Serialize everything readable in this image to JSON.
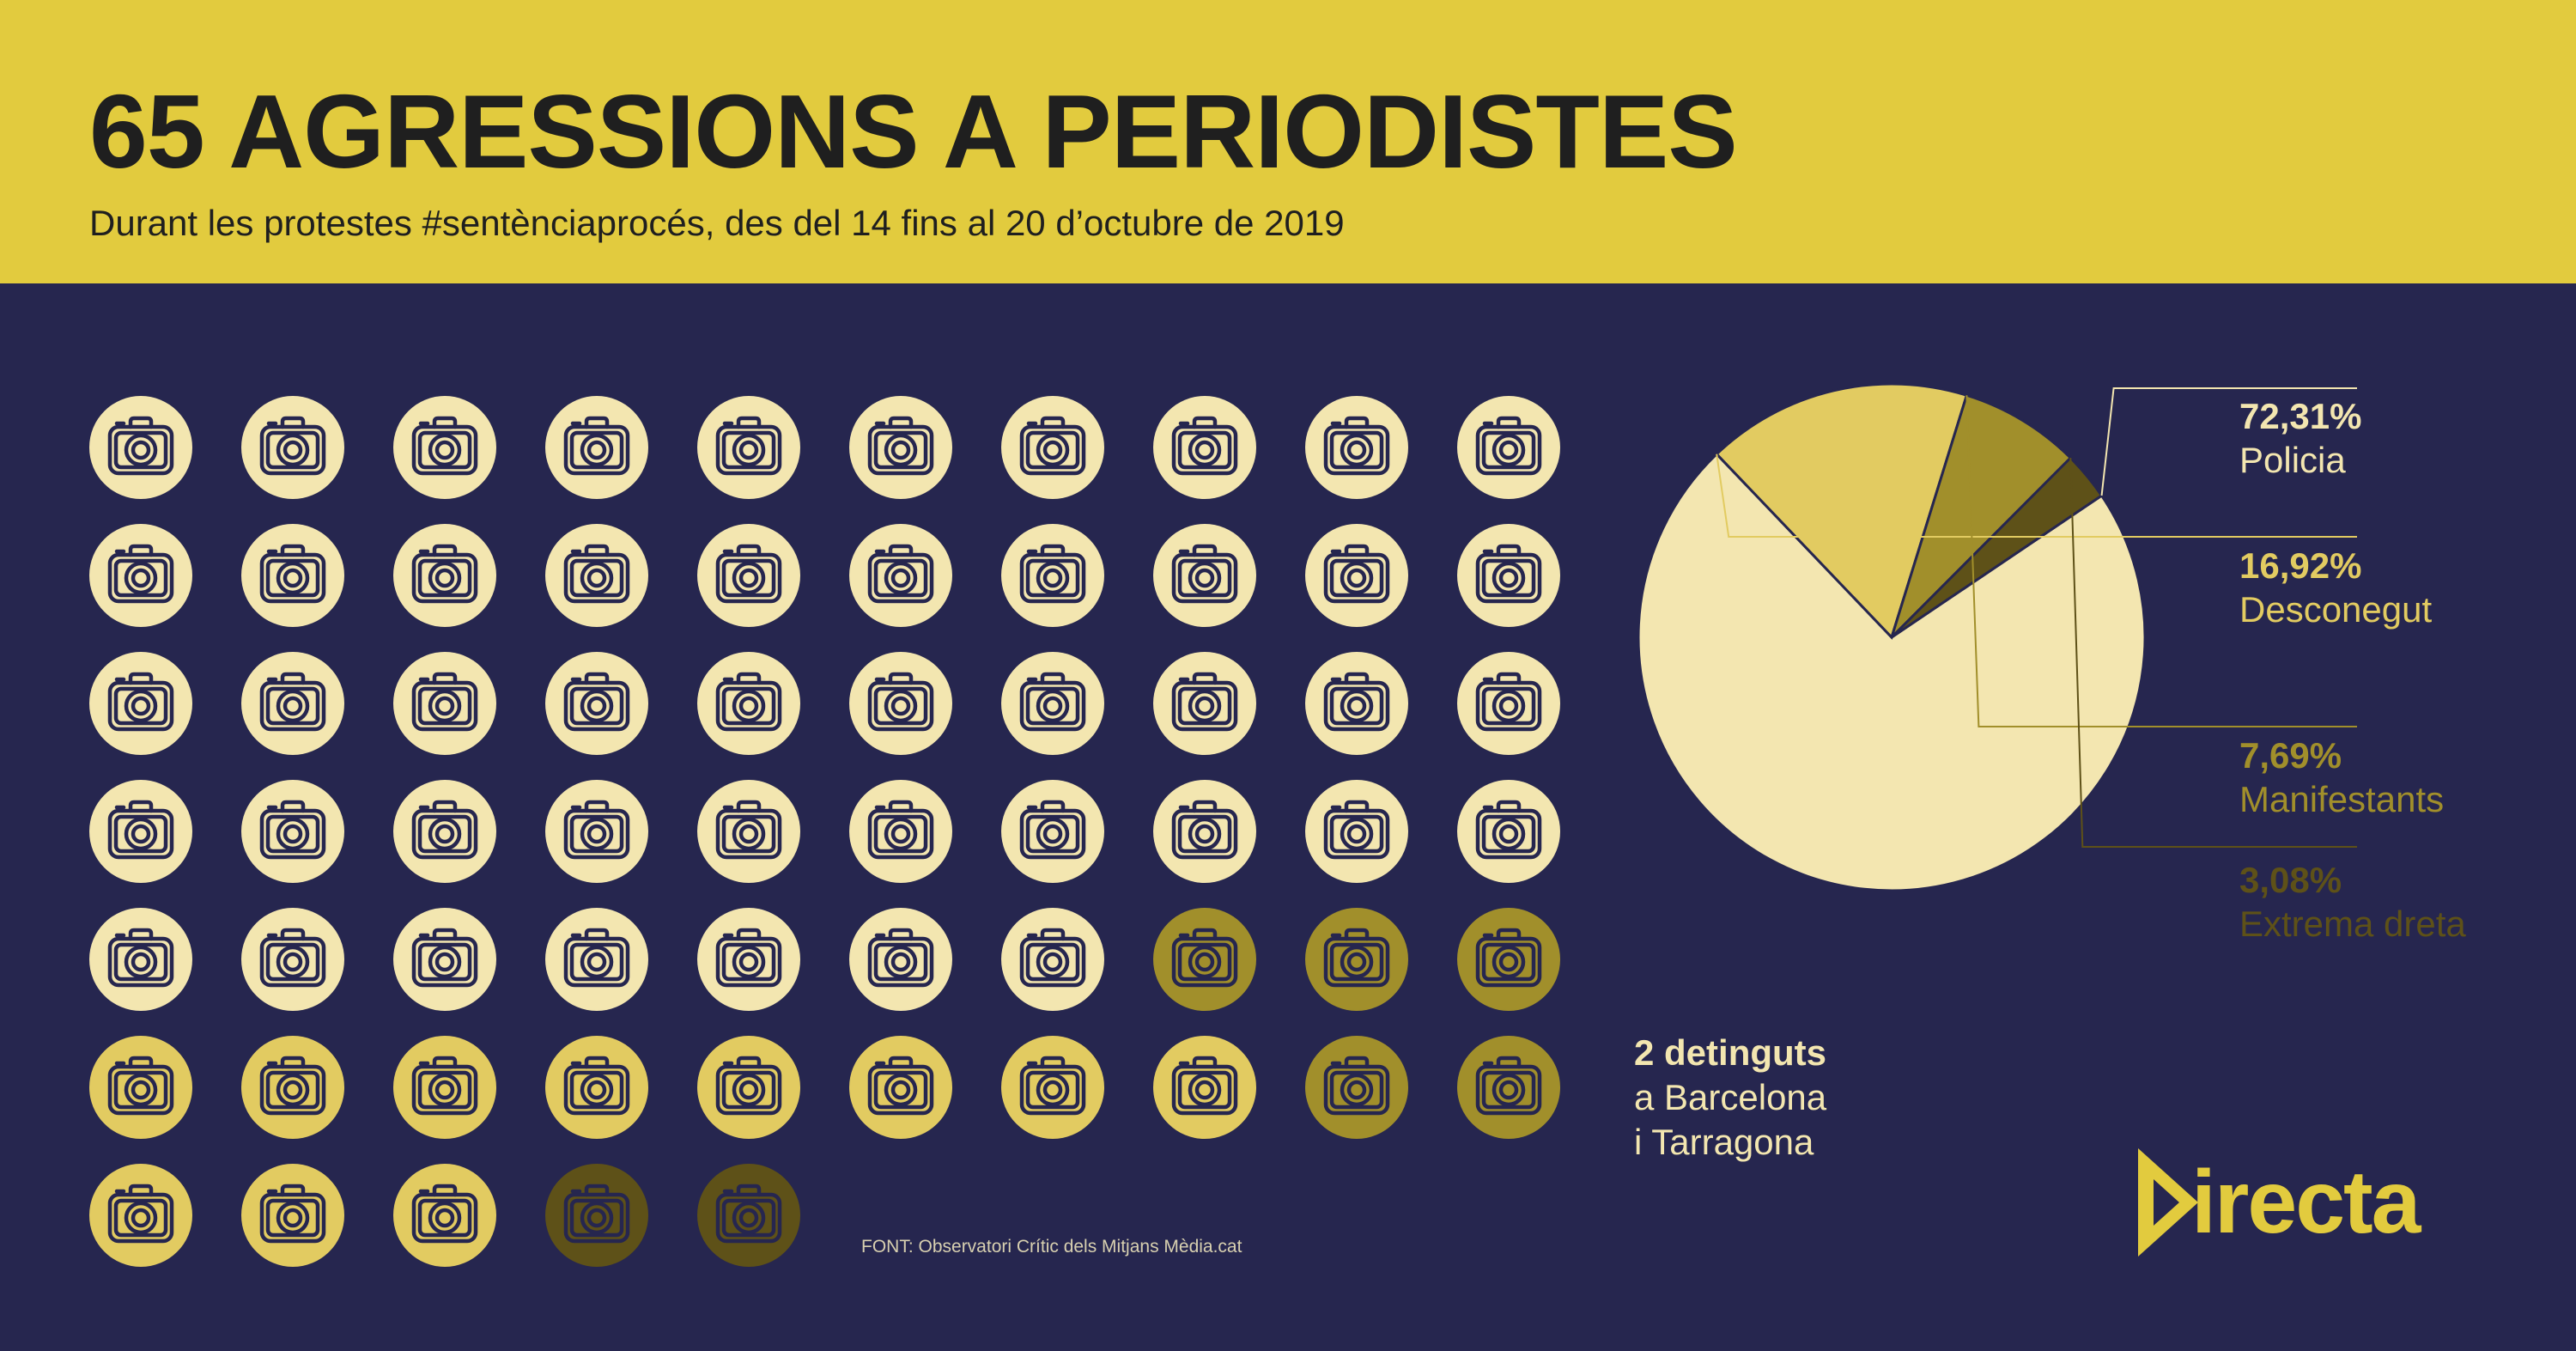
{
  "header": {
    "title": "65 AGRESSIONS A PERIODISTES",
    "subtitle": "Durant les protestes #sentènciaprocés, des del 14 fins al 20 d’octubre de 2019"
  },
  "colors": {
    "background": "#26264f",
    "header": "#e2cb3e",
    "policia": "#f3e6b0",
    "desconegut": "#e2cb61",
    "manifestants": "#a18f2b",
    "extrema_dreta": "#5e5118",
    "icon_stroke": "#26264f"
  },
  "chart_data": {
    "type": "pie",
    "title": "65 AGRESSIONS A PERIODISTES",
    "total": 65,
    "slices": [
      {
        "label": "Policia",
        "percent_label": "72,31%",
        "value": 47,
        "percent": 72.31,
        "color": "#f3e6b0"
      },
      {
        "label": "Desconegut",
        "percent_label": "16,92%",
        "value": 11,
        "percent": 16.92,
        "color": "#e2cb61"
      },
      {
        "label": "Manifestants",
        "percent_label": "7,69%",
        "value": 5,
        "percent": 7.69,
        "color": "#a18f2b"
      },
      {
        "label": "Extrema dreta",
        "percent_label": "3,08%",
        "value": 2,
        "percent": 3.08,
        "color": "#5e5118"
      }
    ],
    "icon_grid": {
      "columns": 10,
      "icon": "camera-icon",
      "sequence": [
        "policia",
        "policia",
        "policia",
        "policia",
        "policia",
        "policia",
        "policia",
        "policia",
        "policia",
        "policia",
        "policia",
        "policia",
        "policia",
        "policia",
        "policia",
        "policia",
        "policia",
        "policia",
        "policia",
        "policia",
        "policia",
        "policia",
        "policia",
        "policia",
        "policia",
        "policia",
        "policia",
        "policia",
        "policia",
        "policia",
        "policia",
        "policia",
        "policia",
        "policia",
        "policia",
        "policia",
        "policia",
        "policia",
        "policia",
        "policia",
        "policia",
        "policia",
        "policia",
        "policia",
        "policia",
        "policia",
        "policia",
        "manifestants",
        "manifestants",
        "manifestants",
        "desconegut",
        "desconegut",
        "desconegut",
        "desconegut",
        "desconegut",
        "desconegut",
        "desconegut",
        "desconegut",
        "manifestants",
        "manifestants",
        "desconegut",
        "desconegut",
        "desconegut",
        "extrema_dreta",
        "extrema_dreta"
      ]
    }
  },
  "legend": [
    {
      "percent": "72,31%",
      "label": "Policia"
    },
    {
      "percent": "16,92%",
      "label": "Desconegut"
    },
    {
      "percent": "7,69%",
      "label": "Manifestants"
    },
    {
      "percent": "3,08%",
      "label": "Extrema dreta"
    }
  ],
  "detinguts": {
    "main": "2 detinguts",
    "line2": "a Barcelona",
    "line3": "i Tarragona"
  },
  "source": "FONT: Observatori Crític dels Mitjans Mèdia.cat",
  "logo": {
    "text": "irecta"
  }
}
